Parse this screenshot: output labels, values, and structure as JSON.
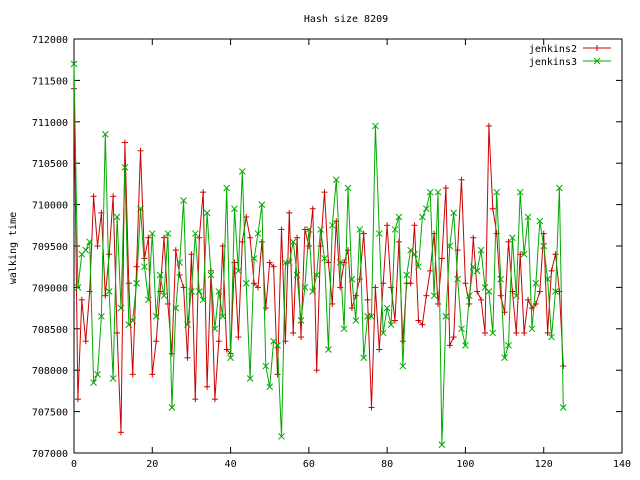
{
  "chart_data": {
    "type": "line",
    "title": "Hash size 8209",
    "xlabel": "",
    "ylabel": "walking time",
    "xlim": [
      0,
      140
    ],
    "ylim": [
      707000,
      712000
    ],
    "xticks": [
      "0",
      "20",
      "40",
      "60",
      "80",
      "100",
      "120",
      "140"
    ],
    "yticks": [
      "707000",
      "707500",
      "708000",
      "708500",
      "709000",
      "709500",
      "710000",
      "710500",
      "711000",
      "711500",
      "712000"
    ],
    "grid": false,
    "legend": "top-right",
    "series": [
      {
        "name": "jenkins2",
        "color": "#cc0000",
        "marker": "plus",
        "x": [
          0,
          1,
          2,
          3,
          4,
          5,
          6,
          7,
          8,
          9,
          10,
          11,
          12,
          13,
          14,
          15,
          16,
          17,
          18,
          19,
          20,
          21,
          22,
          23,
          24,
          25,
          26,
          27,
          28,
          29,
          30,
          31,
          32,
          33,
          34,
          35,
          36,
          37,
          38,
          39,
          40,
          41,
          42,
          43,
          44,
          45,
          46,
          47,
          48,
          49,
          50,
          51,
          52,
          53,
          54,
          55,
          56,
          57,
          58,
          59,
          60,
          61,
          62,
          63,
          64,
          65,
          66,
          67,
          68,
          69,
          70,
          71,
          72,
          73,
          74,
          75,
          76,
          77,
          78,
          79,
          80,
          81,
          82,
          83,
          84,
          85,
          86,
          87,
          88,
          89,
          90,
          91,
          92,
          93,
          94,
          95,
          96,
          97,
          98,
          99,
          100,
          101,
          102,
          103,
          104,
          105,
          106,
          107,
          108,
          109,
          110,
          111,
          112,
          113,
          114,
          115,
          116,
          117,
          118,
          119,
          120,
          121,
          122,
          123,
          124,
          125
        ],
        "y": [
          711400,
          707650,
          708850,
          708350,
          708950,
          710100,
          709500,
          709900,
          708900,
          709400,
          710100,
          708450,
          707250,
          710750,
          709050,
          707950,
          709250,
          710650,
          709350,
          709600,
          707950,
          708350,
          708950,
          709600,
          708800,
          708200,
          709450,
          709150,
          709000,
          708150,
          709400,
          707650,
          709600,
          710150,
          707800,
          709200,
          707650,
          708350,
          709500,
          708250,
          708200,
          709300,
          708400,
          709550,
          709850,
          709600,
          709050,
          709000,
          709550,
          708750,
          709300,
          709250,
          707950,
          709700,
          708350,
          709900,
          708450,
          709600,
          708400,
          709700,
          709500,
          709950,
          708000,
          709500,
          710150,
          709300,
          708800,
          709800,
          709000,
          709300,
          709450,
          708750,
          708900,
          709100,
          709650,
          708850,
          707550,
          709000,
          708250,
          709050,
          709750,
          709000,
          708600,
          709550,
          708350,
          709050,
          709050,
          709750,
          708600,
          708550,
          708900,
          709200,
          709650,
          708800,
          709350,
          710200,
          708300,
          708400,
          709450,
          710300,
          709050,
          708800,
          709600,
          708950,
          708850,
          708450,
          710950,
          709950,
          709650,
          708900,
          708700,
          709550,
          708950,
          708450,
          709400,
          708450,
          708850,
          708750,
          708800,
          708950,
          709650,
          708450,
          709200,
          709400,
          708950,
          708050
        ]
      },
      {
        "name": "jenkins3",
        "color": "#00aa00",
        "marker": "x",
        "x": [
          0,
          1,
          2,
          3,
          4,
          5,
          6,
          7,
          8,
          9,
          10,
          11,
          12,
          13,
          14,
          15,
          16,
          17,
          18,
          19,
          20,
          21,
          22,
          23,
          24,
          25,
          26,
          27,
          28,
          29,
          30,
          31,
          32,
          33,
          34,
          35,
          36,
          37,
          38,
          39,
          40,
          41,
          42,
          43,
          44,
          45,
          46,
          47,
          48,
          49,
          50,
          51,
          52,
          53,
          54,
          55,
          56,
          57,
          58,
          59,
          60,
          61,
          62,
          63,
          64,
          65,
          66,
          67,
          68,
          69,
          70,
          71,
          72,
          73,
          74,
          75,
          76,
          77,
          78,
          79,
          80,
          81,
          82,
          83,
          84,
          85,
          86,
          87,
          88,
          89,
          90,
          91,
          92,
          93,
          94,
          95,
          96,
          97,
          98,
          99,
          100,
          101,
          102,
          103,
          104,
          105,
          106,
          107,
          108,
          109,
          110,
          111,
          112,
          113,
          114,
          115,
          116,
          117,
          118,
          119,
          120,
          121,
          122,
          123,
          124,
          125
        ],
        "y": [
          711700,
          709000,
          709400,
          709450,
          709550,
          707850,
          707950,
          708650,
          710850,
          708950,
          707900,
          709850,
          708750,
          710450,
          708550,
          708600,
          709050,
          709950,
          709250,
          708850,
          709650,
          708650,
          709150,
          708900,
          709650,
          707550,
          708750,
          709300,
          710050,
          708550,
          708950,
          709650,
          708950,
          708850,
          709900,
          709150,
          708500,
          708950,
          708650,
          710200,
          708150,
          709950,
          709200,
          710400,
          709050,
          707900,
          709350,
          709650,
          710000,
          708050,
          707800,
          708350,
          708300,
          707200,
          709300,
          709300,
          709550,
          709150,
          708600,
          709000,
          709700,
          708950,
          709150,
          709700,
          709350,
          708250,
          709750,
          710300,
          709300,
          708500,
          710200,
          709100,
          708600,
          709700,
          708150,
          708650,
          708650,
          710950,
          709650,
          708450,
          708750,
          708550,
          709700,
          709850,
          708050,
          709150,
          709450,
          709400,
          709250,
          709850,
          709950,
          710150,
          708900,
          710150,
          707100,
          708650,
          709500,
          709900,
          709100,
          708500,
          708300,
          708900,
          709250,
          709200,
          709450,
          709000,
          708950,
          708450,
          710150,
          709100,
          708150,
          708300,
          709600,
          708900,
          710150,
          709400,
          709850,
          708500,
          709050,
          709800,
          709500,
          709100,
          708400,
          708950,
          710200,
          707550
        ]
      }
    ]
  }
}
